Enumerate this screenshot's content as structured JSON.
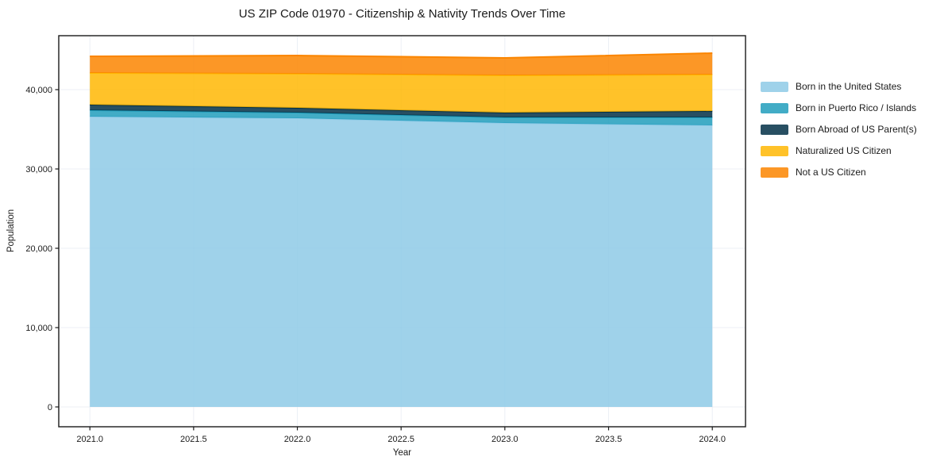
{
  "chart_data": {
    "type": "area",
    "stacked": true,
    "title": "US ZIP Code 01970 - Citizenship & Nativity Trends Over Time",
    "xlabel": "Year",
    "ylabel": "Population",
    "x": [
      2021,
      2022,
      2023,
      2024
    ],
    "series": [
      {
        "name": "Born in the United States",
        "color": "#8ECAE6",
        "values": [
          36600,
          36400,
          35800,
          35500
        ]
      },
      {
        "name": "Born in Puerto Rico / Islands",
        "color": "#219EBC",
        "values": [
          800,
          700,
          700,
          1000
        ]
      },
      {
        "name": "Born Abroad of US Parent(s)",
        "color": "#023047",
        "values": [
          700,
          600,
          600,
          800
        ]
      },
      {
        "name": "Naturalized US Citizen",
        "color": "#FFB703",
        "values": [
          4000,
          4300,
          4700,
          4600
        ]
      },
      {
        "name": "Not a US Citizen",
        "color": "#FB8500",
        "values": [
          2100,
          2300,
          2200,
          2700
        ]
      }
    ],
    "stacked_totals": [
      44200,
      44300,
      44000,
      44600
    ],
    "fill_opacity": 0.85,
    "edge_line_width": 2,
    "xlim": [
      2020.85,
      2024.16
    ],
    "ylim": [
      -2500,
      46800
    ],
    "x_ticks": {
      "values": [
        2021.0,
        2021.5,
        2022.0,
        2022.5,
        2023.0,
        2023.5,
        2024.0
      ],
      "labels": [
        "2021.0",
        "2021.5",
        "2022.0",
        "2022.5",
        "2023.0",
        "2023.5",
        "2024.0"
      ]
    },
    "y_ticks": {
      "values": [
        0,
        10000,
        20000,
        30000,
        40000
      ],
      "labels": [
        "0",
        "10,000",
        "20,000",
        "30,000",
        "40,000"
      ]
    },
    "grid": true,
    "legend_position": "right-outside"
  },
  "colors": {
    "background": "#ffffff",
    "text": "#1a1a1a",
    "grid": "#dfe4ee",
    "spine": "#1a1a1a"
  }
}
